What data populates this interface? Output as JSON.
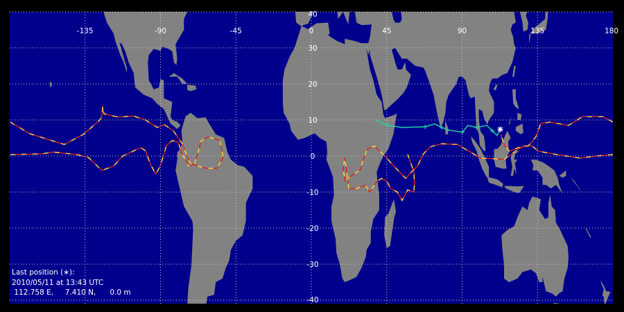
{
  "map": {
    "projection": "equirectangular",
    "lon_range": [
      -180,
      180
    ],
    "lat_range": [
      -40,
      40
    ],
    "lon_ticks": [
      -135,
      -90,
      -45,
      0,
      45,
      90,
      135,
      180
    ],
    "lat_ticks": [
      40,
      30,
      20,
      10,
      0,
      -10,
      -20,
      -30,
      -40
    ],
    "grid": true,
    "colors": {
      "ocean": "#00008c",
      "land": "#828282",
      "grid": "#d0d0d0",
      "track_a": "#e02020",
      "track_b": "#f0e040",
      "recent_track": "#20d0a0",
      "marker": "#ffffff"
    }
  },
  "last_position": {
    "heading": "Last position (∗):",
    "datetime": "2010/05/11 at 13:43 UTC",
    "coords": " 112.758 E,     7.410 N,      0.0 m",
    "lon": 112.758,
    "lat": 7.41
  },
  "tracks": [
    {
      "kind": "old",
      "points": [
        [
          -179.6,
          9.4
        ],
        [
          -168,
          6.2
        ],
        [
          -147.4,
          3.2
        ],
        [
          -136,
          6
        ],
        [
          -126.6,
          9.8
        ],
        [
          -125,
          10.8
        ],
        [
          -124.5,
          13.8
        ],
        [
          -123.7,
          11.7
        ],
        [
          -115.4,
          10.8
        ],
        [
          -106,
          11.1
        ],
        [
          -99,
          10
        ],
        [
          -91.9,
          7.9
        ],
        [
          -87.7,
          8.7
        ],
        [
          -82.3,
          7
        ],
        [
          -77,
          3.4
        ],
        [
          -72.8,
          -1.5
        ],
        [
          -71.2,
          -2.3
        ],
        [
          -62.9,
          -3.4
        ],
        [
          -56.3,
          -3.4
        ],
        [
          -52.5,
          -0.4
        ],
        [
          -54.6,
          4.3
        ],
        [
          -61.6,
          5.3
        ],
        [
          -65.8,
          4.2
        ],
        [
          -67.9,
          0.4
        ],
        [
          -69.9,
          -2.3
        ],
        [
          -74,
          -2.8
        ]
      ]
    },
    {
      "kind": "old",
      "points": [
        [
          -179.6,
          0.4
        ],
        [
          -161,
          0.6
        ],
        [
          -154,
          1.1
        ],
        [
          -140,
          0.4
        ],
        [
          -133,
          -0.4
        ],
        [
          -125,
          -4
        ],
        [
          -118,
          -2.8
        ],
        [
          -112.5,
          0
        ],
        [
          -101.8,
          2.3
        ],
        [
          -99,
          1.5
        ],
        [
          -96,
          -2.3
        ],
        [
          -92.7,
          -5.1
        ],
        [
          -89.8,
          -2.3
        ],
        [
          -86.5,
          2.8
        ],
        [
          -83,
          4.3
        ],
        [
          -79.4,
          3.8
        ],
        [
          -77,
          0.4
        ],
        [
          -72.8,
          -2.8
        ]
      ]
    },
    {
      "kind": "old",
      "points": [
        [
          180,
          0.4
        ],
        [
          170,
          0
        ],
        [
          160.5,
          -0.6
        ],
        [
          146.5,
          0.4
        ],
        [
          135.7,
          1.3
        ],
        [
          131.6,
          2.8
        ],
        [
          127.4,
          2.8
        ],
        [
          123.3,
          1.9
        ],
        [
          119.2,
          0.4
        ],
        [
          115,
          -0.9
        ],
        [
          101,
          -0.6
        ],
        [
          87.3,
          3.2
        ],
        [
          77.8,
          3.4
        ],
        [
          70.7,
          2.5
        ],
        [
          66.6,
          0.4
        ],
        [
          63.7,
          -2.5
        ],
        [
          56.3,
          -6.2
        ],
        [
          50,
          -3.2
        ],
        [
          43.9,
          0
        ],
        [
          37.6,
          2.8
        ],
        [
          33.5,
          1.9
        ],
        [
          30.6,
          -1.3
        ],
        [
          29.4,
          -3.8
        ],
        [
          22.3,
          -6
        ],
        [
          20.3,
          -7
        ],
        [
          19,
          -3.8
        ],
        [
          19.9,
          -0.6
        ],
        [
          21,
          -4
        ],
        [
          22.3,
          -8.9
        ],
        [
          26.5,
          -9.1
        ],
        [
          32.3,
          -8.1
        ],
        [
          34.8,
          -10
        ],
        [
          38.9,
          -7.2
        ],
        [
          41.8,
          -6.2
        ],
        [
          45.1,
          -7
        ],
        [
          47.2,
          -8.9
        ],
        [
          51.3,
          -10
        ],
        [
          54.2,
          -12.3
        ],
        [
          57.5,
          -9.4
        ],
        [
          61.2,
          -10
        ],
        [
          61.6,
          -7.5
        ],
        [
          61.2,
          -4.3
        ],
        [
          57.5,
          0.4
        ]
      ]
    },
    {
      "kind": "old",
      "points": [
        [
          180,
          9.4
        ],
        [
          174,
          10.9
        ],
        [
          161.8,
          10.9
        ],
        [
          153.5,
          8.5
        ],
        [
          142.3,
          9.4
        ],
        [
          137,
          9
        ],
        [
          134,
          5.3
        ],
        [
          129.5,
          2.8
        ],
        [
          123.3,
          2.3
        ],
        [
          118.3,
          1.3
        ],
        [
          115.4,
          2.8
        ],
        [
          113,
          6
        ]
      ]
    },
    {
      "kind": "recent",
      "points": [
        [
          38.9,
          9.8
        ],
        [
          45.9,
          8.5
        ],
        [
          54.2,
          7.9
        ],
        [
          67.9,
          8.1
        ],
        [
          73.6,
          8.9
        ],
        [
          77.8,
          7.9
        ],
        [
          81.9,
          7.2
        ],
        [
          90.2,
          6.6
        ],
        [
          93.5,
          8.5
        ],
        [
          98.5,
          7.9
        ],
        [
          104.7,
          8.5
        ],
        [
          108,
          7
        ],
        [
          110.9,
          5.7
        ],
        [
          112.758,
          7.41
        ]
      ]
    }
  ]
}
